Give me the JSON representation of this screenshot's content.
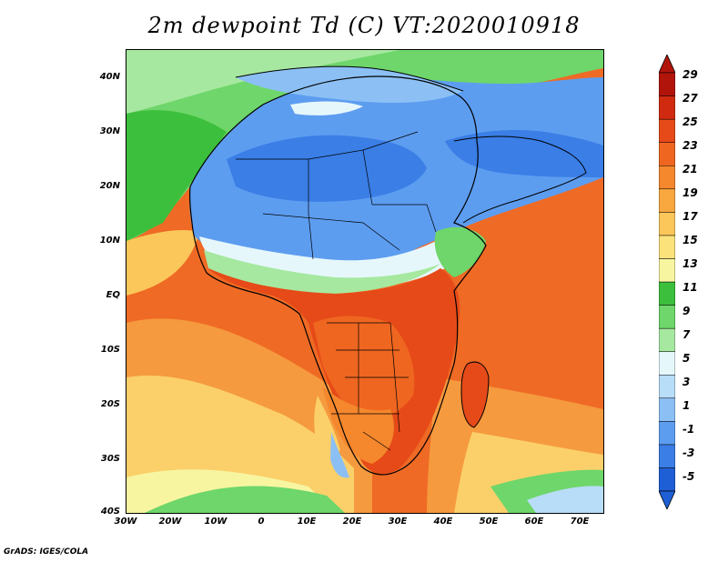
{
  "title": "2m dewpoint Td (C) VT:2020010918",
  "footer": "GrADS: IGES/COLA",
  "lat_labels": [
    "40N",
    "30N",
    "20N",
    "10N",
    "EQ",
    "10S",
    "20S",
    "30S",
    "40S"
  ],
  "lon_labels": [
    "30W",
    "20W",
    "10W",
    "0",
    "10E",
    "20E",
    "30E",
    "40E",
    "50E",
    "60E",
    "70E"
  ],
  "colorbar": {
    "labels": [
      "29",
      "27",
      "25",
      "23",
      "21",
      "19",
      "17",
      "15",
      "13",
      "11",
      "9",
      "7",
      "5",
      "3",
      "1",
      "-1",
      "-3",
      "-5"
    ],
    "colors": [
      "#1e5fd6",
      "#3a7ee6",
      "#5d9df0",
      "#8cc0f5",
      "#b8ddf8",
      "#e6f7fc",
      "#a6e8a0",
      "#6ed66a",
      "#3cbf3c",
      "#f8f5a0",
      "#fce27a",
      "#fbc75a",
      "#f8a83e",
      "#f5872d",
      "#ef6620",
      "#e64a18",
      "#d02a10",
      "#b0140b"
    ]
  },
  "map": {
    "fields": {
      "ocean_warm": "#ef6a25",
      "ocean_mid": "#f59a3e",
      "ocean_cool": "#fbd06a",
      "sahara": "#5d9df0",
      "sahara_dark": "#3a7ee6",
      "north_green": "#6ed66a",
      "central": "#e64a18",
      "south": "#f5872d"
    }
  }
}
